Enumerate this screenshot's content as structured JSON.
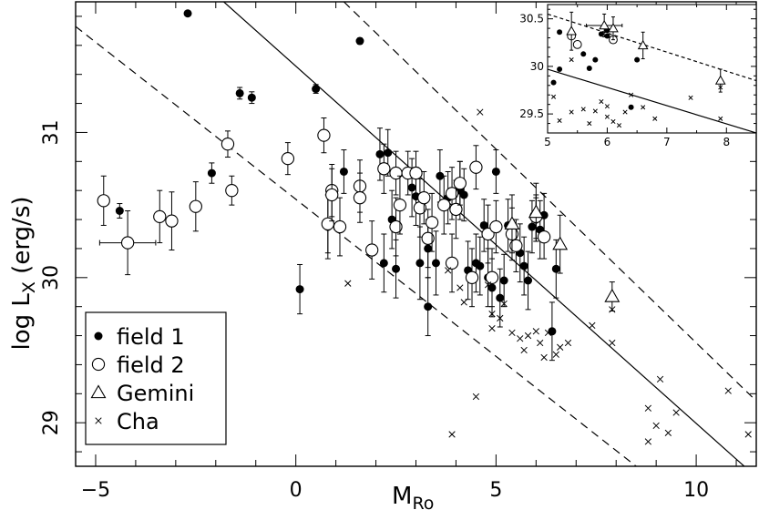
{
  "chart_data": [
    {
      "id": "main",
      "type": "scatter",
      "xlabel_main": "M",
      "xlabel_sub": "Ro",
      "ylabel_main": "log L",
      "ylabel_sub": "X",
      "ylabel_unit": " (erg/s)",
      "xlim": [
        -5.5,
        11.5
      ],
      "ylim": [
        28.7,
        31.9
      ],
      "xticks": [
        -5,
        0,
        5,
        10
      ],
      "yticks": [
        29,
        30,
        31
      ],
      "lines": [
        {
          "style": "solid",
          "x": [
            -1.8,
            11.2
          ],
          "y": [
            31.9,
            28.7
          ]
        },
        {
          "style": "dashed",
          "x": [
            1.2,
            11.5
          ],
          "y": [
            31.9,
            29.15
          ]
        },
        {
          "style": "dashed",
          "x": [
            -5.5,
            8.5
          ],
          "y": [
            31.73,
            28.7
          ]
        }
      ],
      "legend": {
        "position": "bottom-left",
        "entries": [
          {
            "marker": "filled-circle",
            "label": "field 1"
          },
          {
            "marker": "open-circle",
            "label": "field 2"
          },
          {
            "marker": "triangle",
            "label": "Gemini"
          },
          {
            "marker": "cross",
            "label": "Cha"
          }
        ]
      },
      "series": [
        {
          "name": "field 1",
          "marker": "filled-circle",
          "points": [
            {
              "x": -2.7,
              "y": 31.82
            },
            {
              "x": 1.6,
              "y": 31.63,
              "yerr": 0.02
            },
            {
              "x": 0.5,
              "y": 31.3,
              "yerr": 0.03
            },
            {
              "x": -1.4,
              "y": 31.27,
              "yerr": 0.04
            },
            {
              "x": -1.1,
              "y": 31.24,
              "yerr": 0.04
            },
            {
              "x": -4.4,
              "y": 30.46,
              "yerr": 0.05
            },
            {
              "x": -2.1,
              "y": 30.72,
              "yerr": 0.07
            },
            {
              "x": 0.1,
              "y": 29.92,
              "yerr": 0.17
            },
            {
              "x": 0.8,
              "y": 30.35,
              "yerr": 0.22
            },
            {
              "x": 1.2,
              "y": 30.73,
              "yerr": 0.15
            },
            {
              "x": 2.1,
              "y": 30.85,
              "yerr": 0.18
            },
            {
              "x": 2.2,
              "y": 30.1,
              "yerr": 0.2
            },
            {
              "x": 2.3,
              "y": 30.86,
              "yerr": 0.16
            },
            {
              "x": 2.4,
              "y": 30.4,
              "yerr": 0.2
            },
            {
              "x": 2.5,
              "y": 30.06,
              "yerr": 0.2
            },
            {
              "x": 2.9,
              "y": 30.62,
              "yerr": 0.2
            },
            {
              "x": 3.0,
              "y": 30.56,
              "yerr": 0.2
            },
            {
              "x": 3.1,
              "y": 30.1,
              "yerr": 0.25
            },
            {
              "x": 3.3,
              "y": 30.2,
              "yerr": 0.2
            },
            {
              "x": 3.3,
              "y": 29.8,
              "yerr": 0.2
            },
            {
              "x": 3.5,
              "y": 30.1,
              "yerr": 0.22
            },
            {
              "x": 3.6,
              "y": 30.7,
              "yerr": 0.18
            },
            {
              "x": 3.8,
              "y": 30.55,
              "yerr": 0.18
            },
            {
              "x": 4.1,
              "y": 30.6,
              "yerr": 0.2
            },
            {
              "x": 4.2,
              "y": 30.57,
              "yerr": 0.18
            },
            {
              "x": 4.3,
              "y": 30.05,
              "yerr": 0.2
            },
            {
              "x": 4.5,
              "y": 30.1,
              "yerr": 0.2
            },
            {
              "x": 4.6,
              "y": 30.08,
              "yerr": 0.2
            },
            {
              "x": 4.7,
              "y": 30.36,
              "yerr": 0.18
            },
            {
              "x": 4.8,
              "y": 30.0,
              "yerr": 0.2
            },
            {
              "x": 4.9,
              "y": 29.93,
              "yerr": 0.2
            },
            {
              "x": 5.0,
              "y": 30.73,
              "yerr": 0.15
            },
            {
              "x": 5.1,
              "y": 29.86,
              "yerr": 0.2
            },
            {
              "x": 5.2,
              "y": 29.98,
              "yerr": 0.18
            },
            {
              "x": 5.3,
              "y": 30.36,
              "yerr": 0.18
            },
            {
              "x": 5.6,
              "y": 30.17,
              "yerr": 0.2
            },
            {
              "x": 5.7,
              "y": 30.08,
              "yerr": 0.2
            },
            {
              "x": 5.8,
              "y": 29.98,
              "yerr": 0.2
            },
            {
              "x": 5.9,
              "y": 30.35,
              "yerr": 0.18
            },
            {
              "x": 6.0,
              "y": 30.4,
              "yerr": 0.15
            },
            {
              "x": 6.1,
              "y": 30.33,
              "yerr": 0.2
            },
            {
              "x": 6.2,
              "y": 30.43,
              "yerr": 0.15
            },
            {
              "x": 6.4,
              "y": 29.63,
              "yerr": 0.2
            },
            {
              "x": 6.5,
              "y": 30.06,
              "yerr": 0.2
            }
          ]
        },
        {
          "name": "field 2",
          "marker": "open-circle",
          "points": [
            {
              "x": -4.8,
              "y": 30.53,
              "yerr": 0.17
            },
            {
              "x": -4.2,
              "y": 30.24,
              "yerr": 0.22,
              "xerr": 0.7
            },
            {
              "x": -3.4,
              "y": 30.42,
              "yerr": 0.18
            },
            {
              "x": -3.1,
              "y": 30.39,
              "yerr": 0.2
            },
            {
              "x": -2.5,
              "y": 30.49,
              "yerr": 0.17
            },
            {
              "x": -1.7,
              "y": 30.92,
              "yerr": 0.09
            },
            {
              "x": -1.6,
              "y": 30.6,
              "yerr": 0.1
            },
            {
              "x": -0.2,
              "y": 30.82,
              "yerr": 0.11
            },
            {
              "x": 0.7,
              "y": 30.98,
              "yerr": 0.12
            },
            {
              "x": 0.8,
              "y": 30.37,
              "yerr": 0.2
            },
            {
              "x": 0.9,
              "y": 30.6,
              "yerr": 0.18
            },
            {
              "x": 0.9,
              "y": 30.57,
              "yerr": 0.18
            },
            {
              "x": 1.1,
              "y": 30.35,
              "yerr": 0.2
            },
            {
              "x": 1.6,
              "y": 30.63,
              "yerr": 0.18
            },
            {
              "x": 1.6,
              "y": 30.55,
              "yerr": 0.17
            },
            {
              "x": 1.9,
              "y": 30.19,
              "yerr": 0.2
            },
            {
              "x": 2.2,
              "y": 30.75,
              "yerr": 0.17
            },
            {
              "x": 2.5,
              "y": 30.72,
              "yerr": 0.15
            },
            {
              "x": 2.5,
              "y": 30.35,
              "yerr": 0.2
            },
            {
              "x": 2.6,
              "y": 30.5,
              "yerr": 0.2
            },
            {
              "x": 2.8,
              "y": 30.72,
              "yerr": 0.15
            },
            {
              "x": 3.0,
              "y": 30.72,
              "yerr": 0.15
            },
            {
              "x": 3.1,
              "y": 30.48,
              "yerr": 0.2
            },
            {
              "x": 3.2,
              "y": 30.55,
              "yerr": 0.18
            },
            {
              "x": 3.3,
              "y": 30.27,
              "yerr": 0.2
            },
            {
              "x": 3.4,
              "y": 30.38,
              "yerr": 0.2
            },
            {
              "x": 3.7,
              "y": 30.5,
              "yerr": 0.2
            },
            {
              "x": 3.9,
              "y": 30.1,
              "yerr": 0.2
            },
            {
              "x": 3.9,
              "y": 30.58,
              "yerr": 0.18
            },
            {
              "x": 4.0,
              "y": 30.47,
              "yerr": 0.2
            },
            {
              "x": 4.1,
              "y": 30.65,
              "yerr": 0.15
            },
            {
              "x": 4.4,
              "y": 30.0,
              "yerr": 0.2
            },
            {
              "x": 4.5,
              "y": 30.76,
              "yerr": 0.15
            },
            {
              "x": 4.8,
              "y": 30.3,
              "yerr": 0.2
            },
            {
              "x": 4.9,
              "y": 30.0,
              "yerr": 0.2
            },
            {
              "x": 5.0,
              "y": 30.35,
              "yerr": 0.18
            },
            {
              "x": 5.4,
              "y": 30.3,
              "yerr": 0.18
            },
            {
              "x": 5.5,
              "y": 30.22,
              "yerr": 0.18
            },
            {
              "x": 6.0,
              "y": 30.42,
              "yerr": 0.15
            },
            {
              "x": 6.2,
              "y": 30.28,
              "yerr": 0.15
            }
          ]
        },
        {
          "name": "Gemini",
          "marker": "triangle",
          "points": [
            {
              "x": 5.4,
              "y": 30.37,
              "yerr": 0.2
            },
            {
              "x": 6.0,
              "y": 30.45,
              "yerr": 0.2
            },
            {
              "x": 6.6,
              "y": 30.23,
              "yerr": 0.2
            },
            {
              "x": 7.9,
              "y": 29.87,
              "yerr": 0.1
            }
          ]
        },
        {
          "name": "Cha",
          "marker": "cross",
          "points": [
            {
              "x": 1.3,
              "y": 29.96
            },
            {
              "x": 3.8,
              "y": 30.05
            },
            {
              "x": 3.9,
              "y": 28.92
            },
            {
              "x": 4.1,
              "y": 29.93
            },
            {
              "x": 4.2,
              "y": 29.83
            },
            {
              "x": 4.5,
              "y": 29.18
            },
            {
              "x": 4.6,
              "y": 31.14
            },
            {
              "x": 4.7,
              "y": 30.36
            },
            {
              "x": 4.8,
              "y": 29.95
            },
            {
              "x": 4.9,
              "y": 29.65
            },
            {
              "x": 4.9,
              "y": 29.75
            },
            {
              "x": 5.1,
              "y": 29.72
            },
            {
              "x": 5.2,
              "y": 29.82
            },
            {
              "x": 5.4,
              "y": 29.62
            },
            {
              "x": 5.6,
              "y": 29.58
            },
            {
              "x": 5.7,
              "y": 29.5
            },
            {
              "x": 5.8,
              "y": 29.6
            },
            {
              "x": 6.0,
              "y": 29.63
            },
            {
              "x": 6.1,
              "y": 29.55
            },
            {
              "x": 6.2,
              "y": 29.45
            },
            {
              "x": 6.3,
              "y": 29.62
            },
            {
              "x": 6.5,
              "y": 29.47
            },
            {
              "x": 6.6,
              "y": 29.52
            },
            {
              "x": 6.8,
              "y": 29.55
            },
            {
              "x": 7.4,
              "y": 29.67
            },
            {
              "x": 7.9,
              "y": 29.78
            },
            {
              "x": 7.9,
              "y": 29.55
            },
            {
              "x": 8.8,
              "y": 28.87
            },
            {
              "x": 8.8,
              "y": 29.1
            },
            {
              "x": 9.0,
              "y": 28.98
            },
            {
              "x": 9.3,
              "y": 28.93
            },
            {
              "x": 9.1,
              "y": 29.3
            },
            {
              "x": 9.5,
              "y": 29.07
            },
            {
              "x": 10.8,
              "y": 29.22
            },
            {
              "x": 11.3,
              "y": 28.92
            }
          ]
        }
      ]
    },
    {
      "id": "inset",
      "type": "scatter",
      "xlim": [
        5,
        8.5
      ],
      "ylim": [
        29.3,
        30.65
      ],
      "xticks": [
        5,
        6,
        7,
        8
      ],
      "yticks": [
        29.5,
        30,
        30.5
      ],
      "lines": [
        {
          "style": "solid",
          "x": [
            5.0,
            8.5
          ],
          "y": [
            29.97,
            29.3
          ]
        },
        {
          "style": "dashed",
          "x": [
            5.0,
            8.5
          ],
          "y": [
            30.55,
            29.85
          ]
        }
      ],
      "series": [
        {
          "name": "field 1",
          "marker": "filled-circle",
          "points": [
            {
              "x": 5.1,
              "y": 29.83
            },
            {
              "x": 5.2,
              "y": 30.36
            },
            {
              "x": 5.2,
              "y": 29.97
            },
            {
              "x": 5.6,
              "y": 30.13
            },
            {
              "x": 5.7,
              "y": 29.98
            },
            {
              "x": 5.8,
              "y": 30.07
            },
            {
              "x": 5.9,
              "y": 30.34
            },
            {
              "x": 6.0,
              "y": 30.38
            },
            {
              "x": 6.0,
              "y": 30.32
            },
            {
              "x": 6.4,
              "y": 29.57
            },
            {
              "x": 6.5,
              "y": 30.07
            }
          ]
        },
        {
          "name": "field 2",
          "marker": "open-circle",
          "points": [
            {
              "x": 5.4,
              "y": 30.32
            },
            {
              "x": 5.5,
              "y": 30.23
            },
            {
              "x": 6.1,
              "y": 30.28
            }
          ]
        },
        {
          "name": "Gemini",
          "marker": "triangle",
          "points": [
            {
              "x": 5.4,
              "y": 30.37,
              "yerr": 0.2
            },
            {
              "x": 5.95,
              "y": 30.43,
              "yerr": 0.12,
              "xerr": 0.3
            },
            {
              "x": 6.1,
              "y": 30.4,
              "yerr": 0.12
            },
            {
              "x": 6.6,
              "y": 30.22,
              "yerr": 0.14
            },
            {
              "x": 7.9,
              "y": 29.85,
              "yerr": 0.12
            }
          ]
        },
        {
          "name": "Cha",
          "marker": "cross",
          "points": [
            {
              "x": 5.1,
              "y": 29.68
            },
            {
              "x": 5.2,
              "y": 29.43
            },
            {
              "x": 5.4,
              "y": 30.07
            },
            {
              "x": 5.4,
              "y": 29.52
            },
            {
              "x": 5.6,
              "y": 29.55
            },
            {
              "x": 5.7,
              "y": 29.4
            },
            {
              "x": 5.8,
              "y": 29.53
            },
            {
              "x": 5.9,
              "y": 29.63
            },
            {
              "x": 6.0,
              "y": 29.47
            },
            {
              "x": 6.0,
              "y": 29.58
            },
            {
              "x": 6.1,
              "y": 29.42
            },
            {
              "x": 6.2,
              "y": 29.38
            },
            {
              "x": 6.3,
              "y": 29.52
            },
            {
              "x": 6.4,
              "y": 29.7
            },
            {
              "x": 6.6,
              "y": 29.57
            },
            {
              "x": 6.8,
              "y": 29.45
            },
            {
              "x": 7.4,
              "y": 29.67
            },
            {
              "x": 7.9,
              "y": 29.78
            },
            {
              "x": 7.9,
              "y": 29.45
            }
          ]
        }
      ]
    }
  ]
}
